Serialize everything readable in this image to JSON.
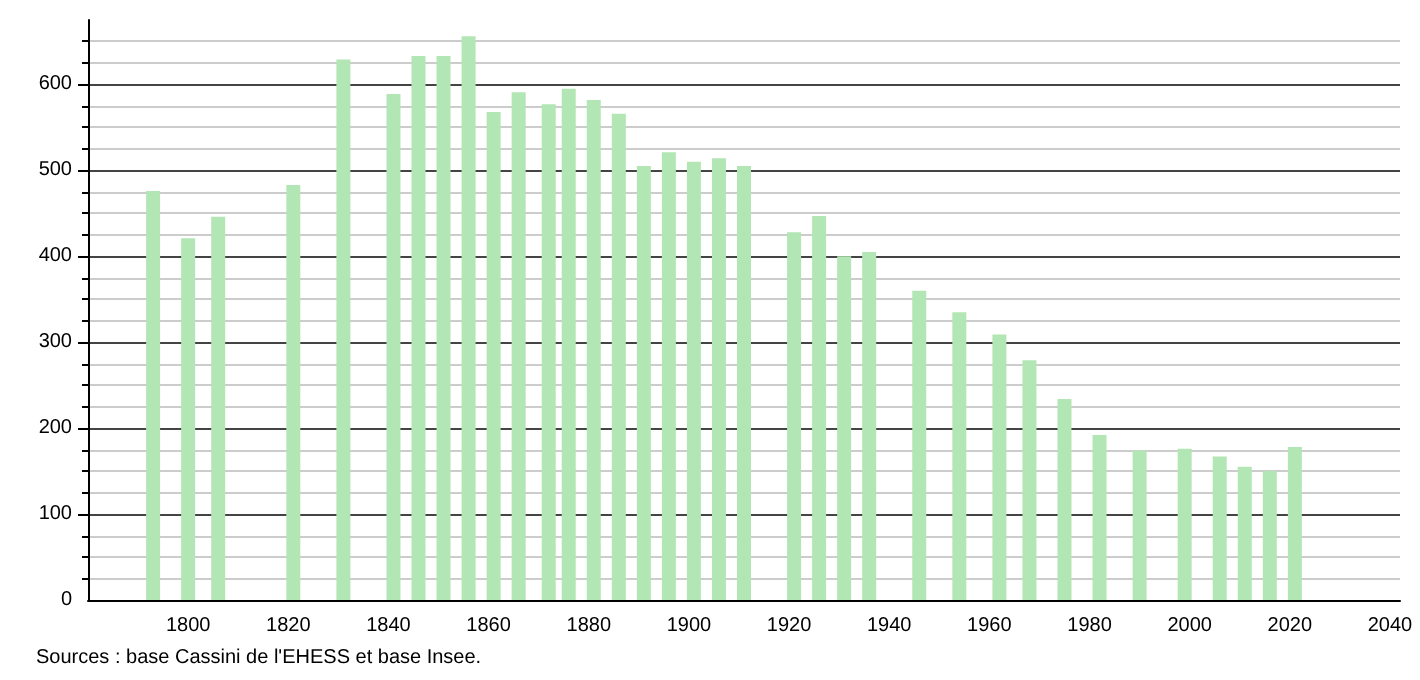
{
  "chart_data": {
    "type": "bar",
    "x": [
      1793,
      1800,
      1806,
      1821,
      1831,
      1841,
      1846,
      1851,
      1856,
      1861,
      1866,
      1872,
      1876,
      1881,
      1886,
      1891,
      1896,
      1901,
      1906,
      1911,
      1921,
      1926,
      1931,
      1936,
      1946,
      1954,
      1962,
      1968,
      1975,
      1982,
      1990,
      1999,
      2006,
      2011,
      2016,
      2021
    ],
    "values": [
      476,
      421,
      446,
      483,
      629,
      589,
      633,
      633,
      656,
      568,
      591,
      577,
      595,
      582,
      566,
      505,
      521,
      510,
      514,
      505,
      428,
      447,
      400,
      405,
      360,
      335,
      309,
      279,
      234,
      192,
      174,
      176,
      167,
      155,
      150,
      178
    ],
    "color": "#b3e6b5",
    "xlim": [
      1780,
      2042
    ],
    "xticks": [
      1800,
      1820,
      1840,
      1860,
      1880,
      1900,
      1920,
      1940,
      1960,
      1980,
      2000,
      2020,
      2040
    ],
    "ylim": [
      0,
      675
    ],
    "yticks": [
      0,
      100,
      200,
      300,
      400,
      500,
      600
    ],
    "grid": "y",
    "annotations": [
      "Sources : base Cassini de l'EHESS et base Insee."
    ]
  }
}
